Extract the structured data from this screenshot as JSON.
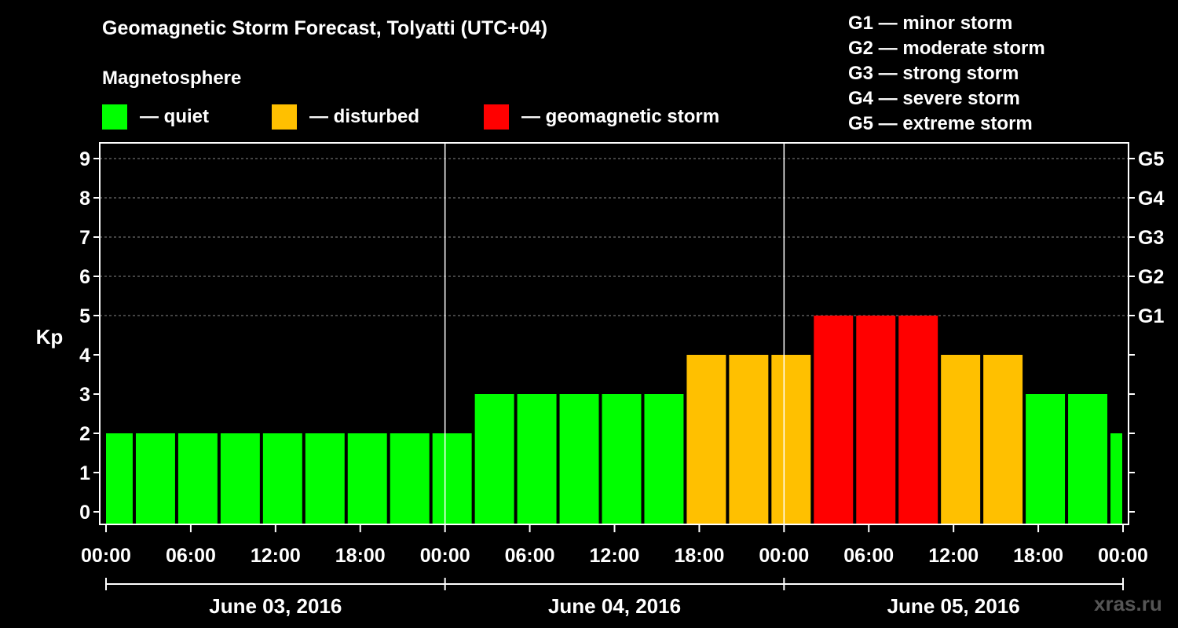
{
  "title": "Geomagnetic Storm Forecast, Tolyatti (UTC+04)",
  "magnetosphere": {
    "heading": "Magnetosphere",
    "items": [
      {
        "label": "— quiet",
        "color": "#00ff00"
      },
      {
        "label": "— disturbed",
        "color": "#ffc000"
      },
      {
        "label": "— geomagnetic storm",
        "color": "#ff0000"
      }
    ]
  },
  "g_scale": [
    {
      "level": "G1",
      "desc": "G1 — minor storm"
    },
    {
      "level": "G2",
      "desc": "G2 — moderate storm"
    },
    {
      "level": "G3",
      "desc": "G3 — strong storm"
    },
    {
      "level": "G4",
      "desc": "G4 — severe storm"
    },
    {
      "level": "G5",
      "desc": "G5 — extreme storm"
    }
  ],
  "watermark": "xras.ru",
  "chart_data": {
    "type": "bar",
    "ylabel": "Kp",
    "ylim": [
      0,
      9
    ],
    "yticks": [
      "0",
      "1",
      "2",
      "3",
      "4",
      "5",
      "6",
      "7",
      "8",
      "9"
    ],
    "right_ticks": [
      {
        "kp": 5,
        "label": "G1"
      },
      {
        "kp": 6,
        "label": "G2"
      },
      {
        "kp": 7,
        "label": "G3"
      },
      {
        "kp": 8,
        "label": "G4"
      },
      {
        "kp": 9,
        "label": "G5"
      }
    ],
    "grid": true,
    "time_unit_hours": 3,
    "start_offset_hours": -1,
    "x_tick_labels": [
      "00:00",
      "06:00",
      "12:00",
      "18:00",
      "00:00",
      "06:00",
      "12:00",
      "18:00",
      "00:00",
      "06:00",
      "12:00",
      "18:00",
      "00:00"
    ],
    "days": [
      "June 03, 2016",
      "June 04, 2016",
      "June 05, 2016"
    ],
    "values": [
      2,
      2,
      2,
      2,
      2,
      2,
      2,
      2,
      2,
      3,
      3,
      3,
      3,
      3,
      4,
      4,
      4,
      5,
      5,
      5,
      4,
      4,
      3,
      3,
      2
    ],
    "colors": {
      "quiet": "#00ff00",
      "disturbed": "#ffc000",
      "storm": "#ff0000"
    }
  }
}
